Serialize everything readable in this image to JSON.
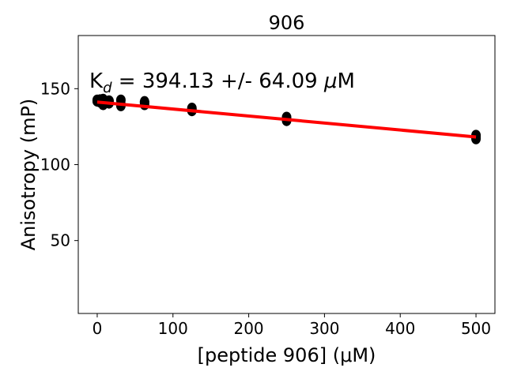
{
  "chart_data": {
    "type": "scatter",
    "title": "906",
    "xlabel": "[peptide 906] (μM)",
    "ylabel": "Anisotropy (mP)",
    "annotation": {
      "prefix": "K",
      "subscript": "d",
      "value_text": " = 394.13 +/- 64.09 ",
      "mu": "μ",
      "unit": "M"
    },
    "xlim": [
      -25,
      525
    ],
    "ylim": [
      2,
      185
    ],
    "xticks": [
      0,
      100,
      200,
      300,
      400,
      500
    ],
    "yticks": [
      50,
      100,
      150
    ],
    "grid": false,
    "series": [
      {
        "kind": "points",
        "color": "#000000",
        "points": [
          {
            "x": 0,
            "y": 142
          },
          {
            "x": 0,
            "y": 142.5
          },
          {
            "x": 0,
            "y": 141.8
          },
          {
            "x": 3.9,
            "y": 142
          },
          {
            "x": 3.9,
            "y": 141.2
          },
          {
            "x": 3.9,
            "y": 142.7
          },
          {
            "x": 7.8,
            "y": 139.5
          },
          {
            "x": 7.8,
            "y": 141.5
          },
          {
            "x": 7.8,
            "y": 143
          },
          {
            "x": 15.6,
            "y": 140.5
          },
          {
            "x": 15.6,
            "y": 141.8
          },
          {
            "x": 15.6,
            "y": 142
          },
          {
            "x": 31.25,
            "y": 138.8
          },
          {
            "x": 31.25,
            "y": 140
          },
          {
            "x": 31.25,
            "y": 142.5
          },
          {
            "x": 62.5,
            "y": 139.5
          },
          {
            "x": 62.5,
            "y": 140.8
          },
          {
            "x": 62.5,
            "y": 141.5
          },
          {
            "x": 125,
            "y": 135.5
          },
          {
            "x": 125,
            "y": 136.5
          },
          {
            "x": 125,
            "y": 137.2
          },
          {
            "x": 250,
            "y": 129
          },
          {
            "x": 250,
            "y": 130.2
          },
          {
            "x": 250,
            "y": 131.2
          },
          {
            "x": 500,
            "y": 117
          },
          {
            "x": 500,
            "y": 118.3
          },
          {
            "x": 500,
            "y": 119.3
          }
        ]
      },
      {
        "kind": "fit",
        "color": "#ff0000",
        "x": [
          0,
          500
        ],
        "y": [
          141.2,
          118.2
        ]
      }
    ]
  }
}
